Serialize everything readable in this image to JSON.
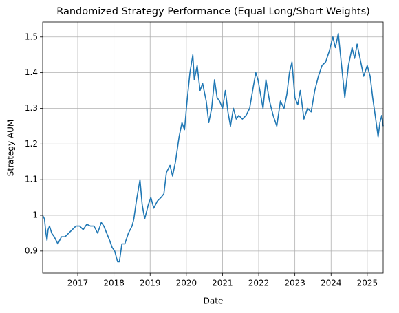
{
  "chart_data": {
    "type": "line",
    "title": "Randomized Strategy Performance (Equal Long/Short Weights)",
    "x_label": "Date",
    "y_label": "Strategy AUM",
    "x": [
      2016.03,
      2016.08,
      2016.12,
      2016.15,
      2016.18,
      2016.22,
      2016.28,
      2016.35,
      2016.45,
      2016.55,
      2016.65,
      2016.75,
      2016.85,
      2016.95,
      2017.05,
      2017.15,
      2017.25,
      2017.35,
      2017.45,
      2017.55,
      2017.65,
      2017.72,
      2017.8,
      2017.88,
      2017.95,
      2018.02,
      2018.1,
      2018.15,
      2018.22,
      2018.3,
      2018.4,
      2018.5,
      2018.55,
      2018.62,
      2018.72,
      2018.78,
      2018.85,
      2018.95,
      2019.02,
      2019.1,
      2019.2,
      2019.3,
      2019.38,
      2019.45,
      2019.55,
      2019.62,
      2019.7,
      2019.8,
      2019.88,
      2019.95,
      2020.02,
      2020.1,
      2020.18,
      2020.22,
      2020.3,
      2020.38,
      2020.45,
      2020.55,
      2020.62,
      2020.7,
      2020.78,
      2020.85,
      2020.92,
      2021.0,
      2021.08,
      2021.15,
      2021.22,
      2021.3,
      2021.38,
      2021.45,
      2021.55,
      2021.65,
      2021.75,
      2021.85,
      2021.92,
      2021.98,
      2022.05,
      2022.12,
      2022.2,
      2022.3,
      2022.4,
      2022.5,
      2022.6,
      2022.7,
      2022.78,
      2022.85,
      2022.92,
      2023.0,
      2023.08,
      2023.15,
      2023.25,
      2023.35,
      2023.45,
      2023.55,
      2023.65,
      2023.75,
      2023.85,
      2023.95,
      2024.05,
      2024.12,
      2024.2,
      2024.3,
      2024.38,
      2024.48,
      2024.58,
      2024.65,
      2024.72,
      2024.8,
      2024.9,
      2025.0,
      2025.08,
      2025.15,
      2025.22,
      2025.3,
      2025.35,
      2025.4,
      2025.44
    ],
    "series": [
      {
        "color": "#1f77b4",
        "values": [
          1.0,
          0.99,
          0.95,
          0.93,
          0.96,
          0.97,
          0.95,
          0.94,
          0.92,
          0.94,
          0.94,
          0.95,
          0.96,
          0.97,
          0.97,
          0.96,
          0.975,
          0.97,
          0.97,
          0.95,
          0.98,
          0.97,
          0.95,
          0.93,
          0.91,
          0.9,
          0.87,
          0.87,
          0.92,
          0.92,
          0.95,
          0.97,
          0.99,
          1.04,
          1.1,
          1.03,
          0.99,
          1.03,
          1.05,
          1.02,
          1.04,
          1.05,
          1.06,
          1.12,
          1.14,
          1.11,
          1.15,
          1.22,
          1.26,
          1.24,
          1.32,
          1.4,
          1.45,
          1.38,
          1.42,
          1.35,
          1.37,
          1.32,
          1.26,
          1.3,
          1.38,
          1.33,
          1.32,
          1.3,
          1.35,
          1.29,
          1.25,
          1.3,
          1.27,
          1.28,
          1.27,
          1.28,
          1.3,
          1.36,
          1.4,
          1.38,
          1.34,
          1.3,
          1.38,
          1.32,
          1.28,
          1.25,
          1.32,
          1.3,
          1.34,
          1.4,
          1.43,
          1.33,
          1.31,
          1.35,
          1.27,
          1.3,
          1.29,
          1.35,
          1.39,
          1.42,
          1.43,
          1.46,
          1.5,
          1.47,
          1.51,
          1.41,
          1.33,
          1.42,
          1.47,
          1.44,
          1.48,
          1.44,
          1.39,
          1.42,
          1.39,
          1.33,
          1.28,
          1.22,
          1.26,
          1.28,
          1.25
        ]
      }
    ],
    "xlim": [
      2016.03,
      2025.44
    ],
    "xticks": [
      2017,
      2018,
      2019,
      2020,
      2021,
      2022,
      2023,
      2024,
      2025
    ],
    "ylim": [
      0.838,
      1.542
    ],
    "yticks": [
      0.9,
      1.0,
      1.1,
      1.2,
      1.3,
      1.4,
      1.5
    ],
    "grid": true
  }
}
